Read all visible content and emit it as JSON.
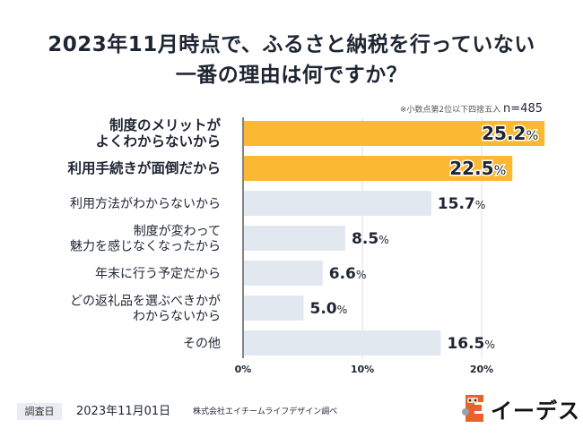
{
  "title_line1": "2023年11月時点で、ふるさと納税を行っていない",
  "title_line2": "一番の理由は何ですか？",
  "note_text": "※小数点第2位以下四捨五入",
  "sample_size": "n=485",
  "footer": {
    "survey_label": "調査日",
    "survey_date": "2023年11月01日",
    "source": "株式会社エイチームライフデザイン調べ",
    "logo_text": "イーデス",
    "logo_icon": "e-block-mascot-icon"
  },
  "colors": {
    "highlight": "#fbb832",
    "normal": "#e2e8f0",
    "text": "#1e2533",
    "grid": "#d9dde3"
  },
  "chart_data": {
    "type": "bar",
    "orientation": "horizontal",
    "title": "2023年11月時点で、ふるさと納税を行っていない一番の理由は何ですか？",
    "categories": [
      [
        "制度のメリットが",
        "よくわからないから"
      ],
      [
        "利用手続きが面倒だから"
      ],
      [
        "利用方法がわからないから"
      ],
      [
        "制度が変わって",
        "魅力を感じなくなったから"
      ],
      [
        "年末に行う予定だから"
      ],
      [
        "どの返礼品を選ぶべきかが",
        "わからないから"
      ],
      [
        "その他"
      ]
    ],
    "values": [
      25.2,
      22.5,
      15.7,
      8.5,
      6.6,
      5.0,
      16.5
    ],
    "value_labels": [
      "25.2",
      "22.5",
      "15.7",
      "8.5",
      "6.6",
      "5.0",
      "16.5"
    ],
    "unit": "%",
    "highlighted": [
      true,
      true,
      false,
      false,
      false,
      false,
      false
    ],
    "xlim": [
      0,
      25.2
    ],
    "xticks": [
      0,
      10,
      20
    ],
    "xtick_labels": [
      "0%",
      "10%",
      "20%"
    ],
    "grid": true,
    "xlabel": "",
    "ylabel": ""
  }
}
